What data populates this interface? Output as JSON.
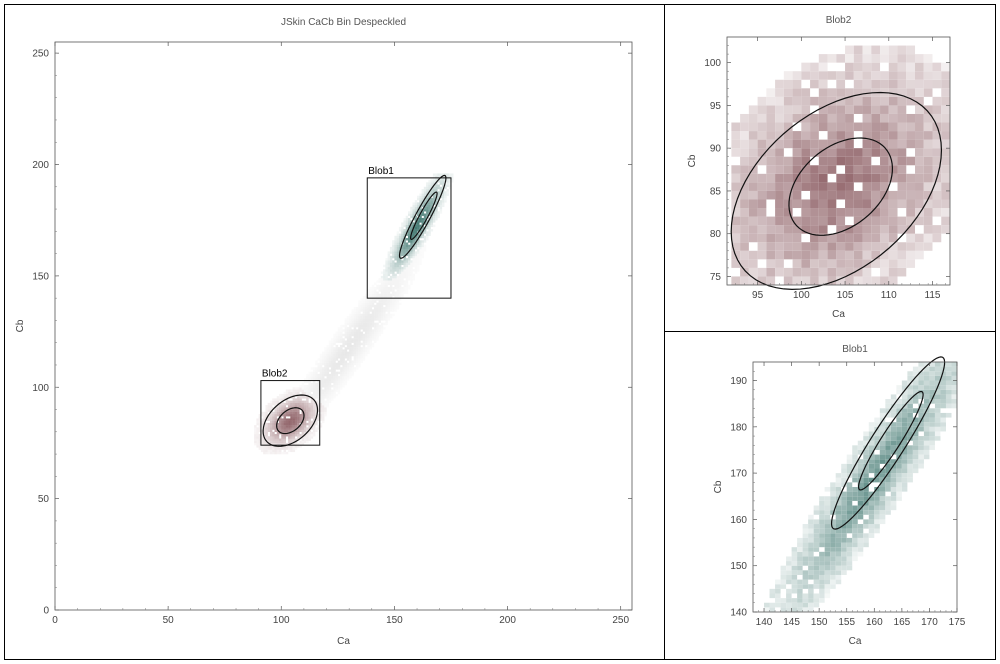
{
  "chart_data": [
    {
      "type": "heatmap",
      "title": "JSkin CaCb Bin Despeckled",
      "xlabel": "Ca",
      "ylabel": "Cb",
      "xlim": [
        0,
        255
      ],
      "ylim": [
        0,
        255
      ],
      "xticks": [
        0,
        50,
        100,
        150,
        200,
        250
      ],
      "yticks": [
        0,
        50,
        100,
        150,
        200,
        250
      ],
      "grid": false,
      "regions": [
        {
          "name": "Blob1",
          "x": [
            138,
            175
          ],
          "y": [
            140,
            194
          ]
        },
        {
          "name": "Blob2",
          "x": [
            91,
            117
          ],
          "y": [
            74,
            103
          ]
        }
      ],
      "ellipses": [
        {
          "cx": 162.5,
          "cy": 176.5,
          "rx": 21,
          "ry": 3.2,
          "angle": 62
        },
        {
          "cx": 163,
          "cy": 177,
          "rx": 12,
          "ry": 1.8,
          "angle": 62
        },
        {
          "cx": 104,
          "cy": 85,
          "rx": 14,
          "ry": 9,
          "angle": 42
        },
        {
          "cx": 104,
          "cy": 85,
          "rx": 7,
          "ry": 4.6,
          "angle": 42
        }
      ],
      "colors": {
        "blob1": "#2f6b63",
        "blob2": "#6b2f36",
        "bridge": "#9a9a9a"
      }
    },
    {
      "type": "heatmap",
      "title": "Blob2",
      "xlabel": "Ca",
      "ylabel": "Cb",
      "xlim": [
        91.5,
        117
      ],
      "ylim": [
        74,
        103
      ],
      "xticks": [
        95,
        100,
        105,
        110,
        115
      ],
      "yticks": [
        75,
        80,
        85,
        90,
        95,
        100
      ],
      "grid": false,
      "ellipses": [
        {
          "cx": 104,
          "cy": 85,
          "rx": 14,
          "ry": 9,
          "angle": 42
        },
        {
          "cx": 104.5,
          "cy": 85.5,
          "rx": 6.8,
          "ry": 4.6,
          "angle": 42
        }
      ],
      "color": "#6b2f36"
    },
    {
      "type": "heatmap",
      "title": "Blob1",
      "xlabel": "Ca",
      "ylabel": "Cb",
      "xlim": [
        138,
        175
      ],
      "ylim": [
        140,
        194
      ],
      "xticks": [
        140,
        145,
        150,
        155,
        160,
        165,
        170,
        175
      ],
      "yticks": [
        140,
        150,
        160,
        170,
        180,
        190
      ],
      "grid": false,
      "ellipses": [
        {
          "cx": 162.5,
          "cy": 176.5,
          "rx": 21,
          "ry": 3.2,
          "angle": 62
        },
        {
          "cx": 163,
          "cy": 177,
          "rx": 12,
          "ry": 1.8,
          "angle": 62
        }
      ],
      "color": "#2f6b63"
    }
  ]
}
